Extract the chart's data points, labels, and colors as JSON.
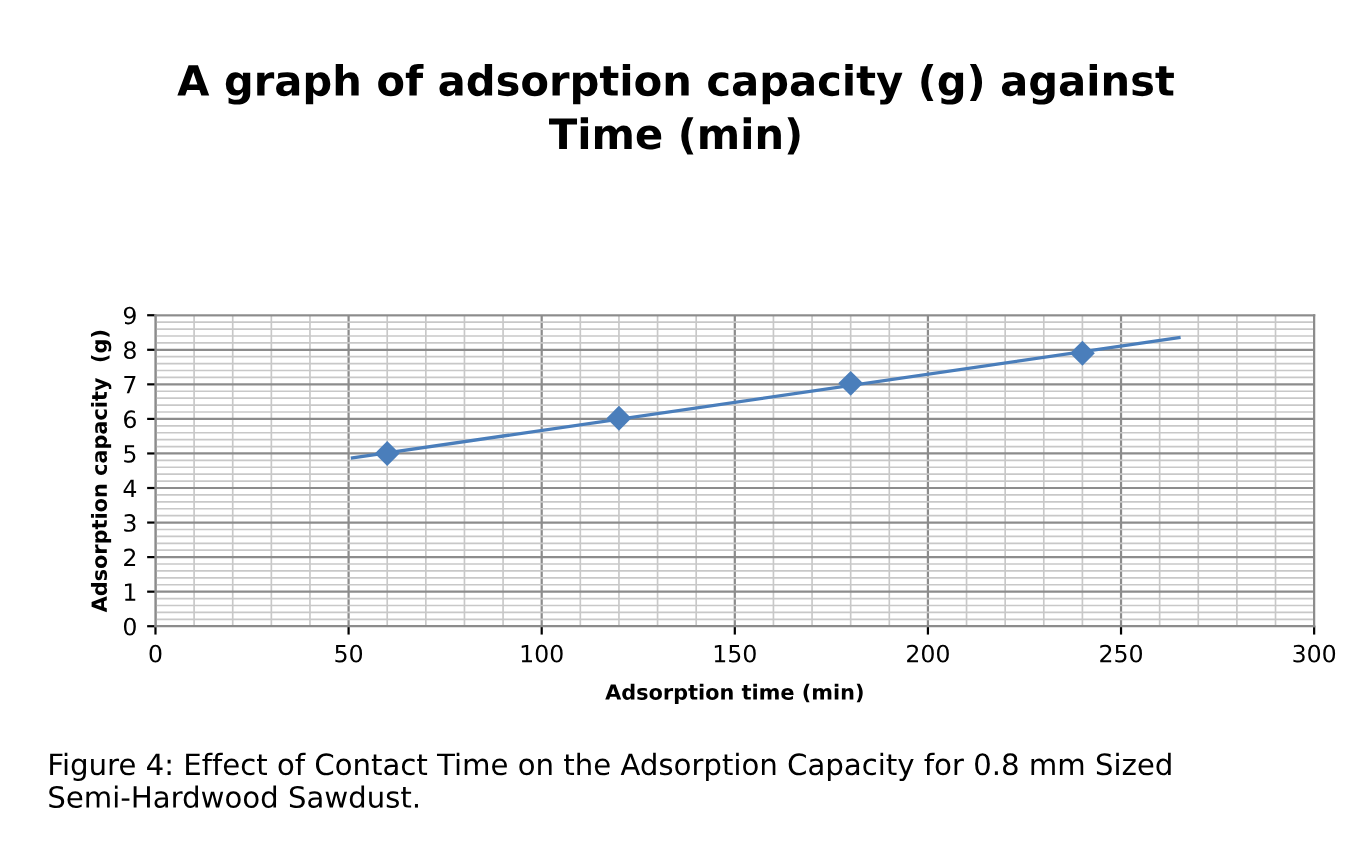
{
  "chart_data": {
    "type": "scatter",
    "title": "A graph of adsorption capacity (g) against\nTime (min)",
    "xlabel": "Adsorption time (min)",
    "ylabel": "Adsorption capacity  (g)",
    "series": [
      {
        "color": "#4a7ebb",
        "marker": "diamond",
        "x": [
          60,
          120,
          180,
          240
        ],
        "values": [
          5.0,
          6.02,
          7.03,
          7.9
        ]
      },
      {
        "type": "line",
        "marker": "none",
        "color": "#4a7ebb",
        "x": [
          51,
          265
        ],
        "values": [
          4.87,
          8.35
        ]
      }
    ],
    "xlim": [
      0,
      300
    ],
    "xticks": [
      0,
      50,
      100,
      150,
      200,
      250,
      300
    ],
    "ylim": [
      0,
      9
    ],
    "yticks": [
      0,
      1,
      2,
      3,
      4,
      5,
      6,
      7,
      8,
      9
    ],
    "grid": true,
    "legend": false,
    "annotations": [
      "Figure 4: Effect of Contact Time on the Adsorption Capacity for 0.8 mm Sized Semi-Hardwood Sawdust."
    ]
  }
}
